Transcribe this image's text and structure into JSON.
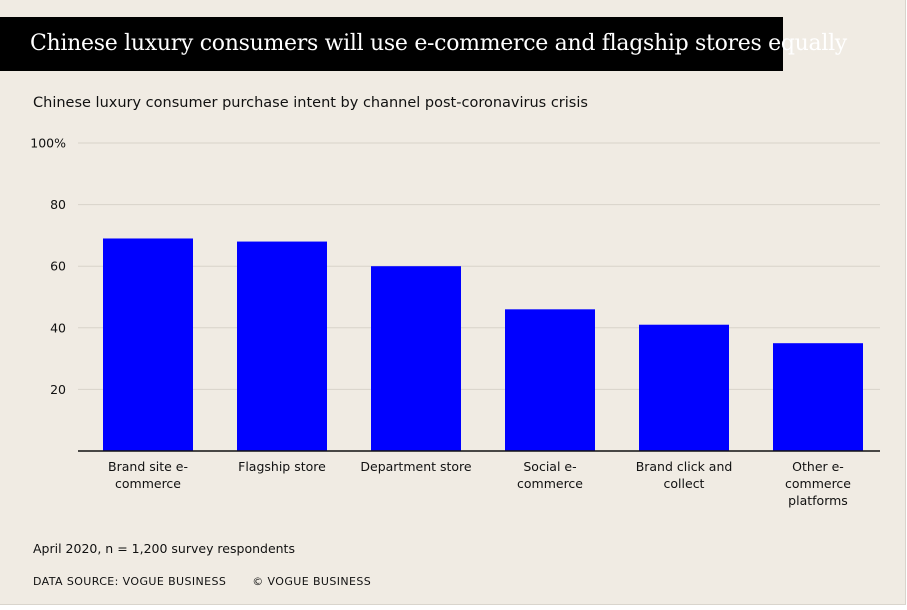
{
  "banner": {
    "title": "Chinese luxury consumers will use e-commerce and flagship stores equally"
  },
  "footer": {
    "note": "April 2020, n = 1,200 survey respondents",
    "source": "DATA SOURCE: VOGUE BUSINESS",
    "copyright": "© VOGUE BUSINESS"
  },
  "colors": {
    "bar": "#0000ff",
    "background": "#f0ebe3",
    "banner": "#000000",
    "grid": "#d8d3ca",
    "axis": "#111111"
  },
  "chart_data": {
    "type": "bar",
    "title": "Chinese luxury consumer purchase intent by channel post-coronavirus crisis",
    "categories": [
      [
        "Brand site e-",
        "commerce"
      ],
      [
        "Flagship store"
      ],
      [
        "Department store"
      ],
      [
        "Social e-",
        "commerce"
      ],
      [
        "Brand click and",
        "collect"
      ],
      [
        "Other e-",
        "commerce",
        "platforms"
      ]
    ],
    "values": [
      69,
      68,
      60,
      46,
      41,
      35
    ],
    "ylim": [
      0,
      100
    ],
    "yticks": [
      {
        "value": 20,
        "label": "20"
      },
      {
        "value": 40,
        "label": "40"
      },
      {
        "value": 60,
        "label": "60"
      },
      {
        "value": 80,
        "label": "80"
      },
      {
        "value": 100,
        "label": "100%"
      }
    ],
    "grid": true,
    "xlabel": "",
    "ylabel": ""
  }
}
